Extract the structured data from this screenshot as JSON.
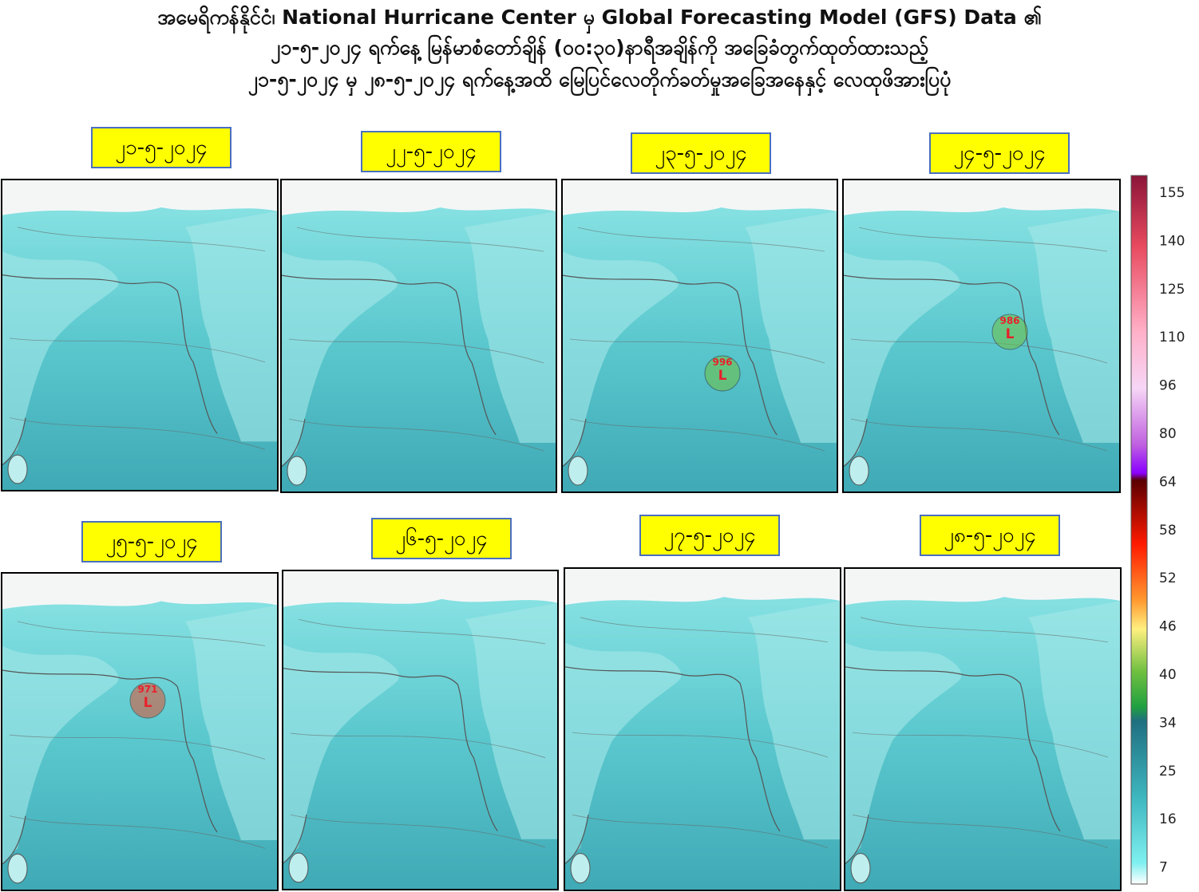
{
  "header": {
    "lines": [
      "အမေရိကန်နိုင်ငံ၊ National Hurricane Center မှ Global Forecasting Model (GFS) Data ၏",
      "၂၁-၅-၂၀၂၄ ရက်နေ့ မြန်မာစံတော်ချိန် (၀၀:၃၀)နာရီအချိန်ကို အခြေခံတွက်ထုတ်ထားသည့်",
      "၂၁-၅-၂၀၂၄ မှ ၂၈-၅-၂၀၂၄ ရက်နေ့အထိ မြေပြင်လေတိုက်ခတ်မှုအခြေအနေနှင့် လေထုဖိအားပြပုံ"
    ]
  },
  "panels": [
    {
      "date": "၂၁-၅-၂၀၂၄"
    },
    {
      "date": "၂၂-၅-၂၀၂၄"
    },
    {
      "date": "၂၃-၅-၂၀၂၄",
      "low": {
        "pressure": "996",
        "symbol": "L"
      }
    },
    {
      "date": "၂၄-၅-၂၀၂၄",
      "low": {
        "pressure": "986",
        "symbol": "L"
      }
    },
    {
      "date": "၂၅-၅-၂၀၂၄",
      "low": {
        "pressure": "971",
        "symbol": "L"
      }
    },
    {
      "date": "၂၆-၅-၂၀၂၄"
    },
    {
      "date": "၂၇-၅-၂၀၂၄"
    },
    {
      "date": "၂၈-၅-၂၀၂၄"
    }
  ],
  "colorbar": {
    "labels": [
      155,
      140,
      125,
      110,
      96,
      80,
      64,
      58,
      52,
      46,
      40,
      34,
      25,
      16,
      7
    ]
  }
}
